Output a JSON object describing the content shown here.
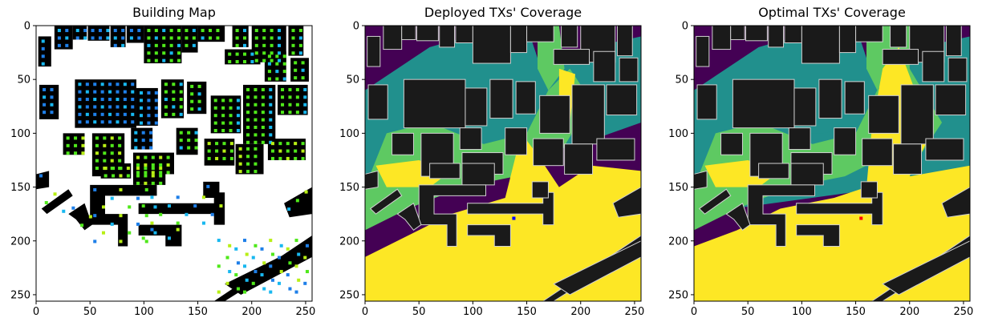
{
  "chart_data": [
    {
      "type": "heatmap",
      "title": "Building Map",
      "xlim": [
        0,
        256
      ],
      "ylim": [
        256,
        0
      ],
      "xticks": [
        0,
        50,
        100,
        150,
        200,
        250
      ],
      "yticks": [
        0,
        50,
        100,
        150,
        200,
        250
      ],
      "colors": {
        "background": "#ffffff",
        "building": "#000000",
        "pixel_blue": "#1e7fe8",
        "pixel_cyan": "#18b8f0",
        "pixel_green": "#4fe81a",
        "pixel_yellowgreen": "#b8ef15"
      }
    },
    {
      "type": "heatmap",
      "title": "Deployed TXs' Coverage",
      "xlim": [
        0,
        256
      ],
      "ylim": [
        256,
        0
      ],
      "xticks": [
        0,
        50,
        100,
        150,
        200,
        250
      ],
      "yticks": [
        0,
        50,
        100,
        150,
        200,
        250
      ],
      "tx_marker": {
        "x": 138,
        "y": 179,
        "color": "#0000ff"
      },
      "colors": {
        "low": "#440154",
        "mid1": "#21908d",
        "mid2": "#5ec962",
        "high": "#fde725",
        "building": "#1a1a1a",
        "outline": "#d0d0d0"
      }
    },
    {
      "type": "heatmap",
      "title": "Optimal TXs' Coverage",
      "xlim": [
        0,
        256
      ],
      "ylim": [
        256,
        0
      ],
      "xticks": [
        0,
        50,
        100,
        150,
        200,
        250
      ],
      "yticks": [
        0,
        50,
        100,
        150,
        200,
        250
      ],
      "tx_marker": {
        "x": 155,
        "y": 179,
        "color": "#ff0000"
      },
      "colors": {
        "low": "#440154",
        "mid1": "#21908d",
        "mid2": "#5ec962",
        "high": "#fde725",
        "building": "#1a1a1a",
        "outline": "#d0d0d0"
      }
    }
  ]
}
